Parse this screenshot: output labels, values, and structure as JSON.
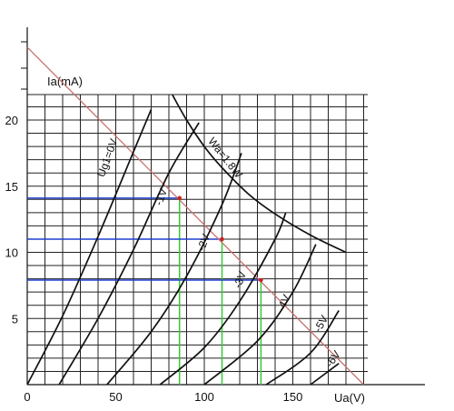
{
  "chart_data": {
    "type": "line",
    "xlabel": "Ua(V)",
    "ylabel": "Ia(mA)",
    "xlim": [
      0,
      200
    ],
    "ylim": [
      0,
      22
    ],
    "xticks": [
      0,
      50,
      100,
      150
    ],
    "yticks": [
      5,
      10,
      15,
      20
    ],
    "grid": true,
    "colors": {
      "curves": "#111111",
      "grid": "#222222",
      "loadline": "#c87070",
      "horizontal_guides": "#1f3fd1",
      "vertical_guides": "#35c935",
      "points": "#cc2222"
    },
    "series": [
      {
        "name": "Ug1=0V",
        "x": [
          0,
          20,
          40,
          60,
          70
        ],
        "y": [
          0,
          5.2,
          11.2,
          17.6,
          20.8
        ]
      },
      {
        "name": "-1V",
        "x": [
          18,
          40,
          60,
          80,
          97
        ],
        "y": [
          0,
          5.0,
          10.2,
          16.0,
          19.8
        ]
      },
      {
        "name": "-2V",
        "x": [
          45,
          70,
          90,
          110,
          121
        ],
        "y": [
          0,
          4.0,
          8.2,
          13.6,
          17.5
        ]
      },
      {
        "name": "-3V",
        "x": [
          75,
          100,
          120,
          140,
          146
        ],
        "y": [
          0,
          2.8,
          6.3,
          11.0,
          13.0
        ]
      },
      {
        "name": "-4V",
        "x": [
          100,
          130,
          150,
          163
        ],
        "y": [
          0,
          3.3,
          7.0,
          10.6
        ]
      },
      {
        "name": "-5V",
        "x": [
          135,
          160,
          176
        ],
        "y": [
          0,
          2.4,
          5.6
        ]
      },
      {
        "name": "-6V",
        "x": [
          160,
          176
        ],
        "y": [
          0,
          1.6
        ]
      }
    ],
    "power_curve": {
      "name": "Wa=1.8W",
      "x": [
        82,
        90,
        100,
        110,
        125,
        140,
        160,
        180
      ],
      "y": [
        21.9,
        20.0,
        18.0,
        16.4,
        14.4,
        12.9,
        11.3,
        10.0
      ]
    },
    "load_line": {
      "x": [
        0,
        190
      ],
      "y": [
        25.5,
        0
      ]
    },
    "operating_points": [
      {
        "label": "-1V",
        "x": 86,
        "y": 14.1
      },
      {
        "label": "-2V",
        "x": 110,
        "y": 11.0
      },
      {
        "label": "-3V",
        "x": 132,
        "y": 7.9
      }
    ]
  }
}
